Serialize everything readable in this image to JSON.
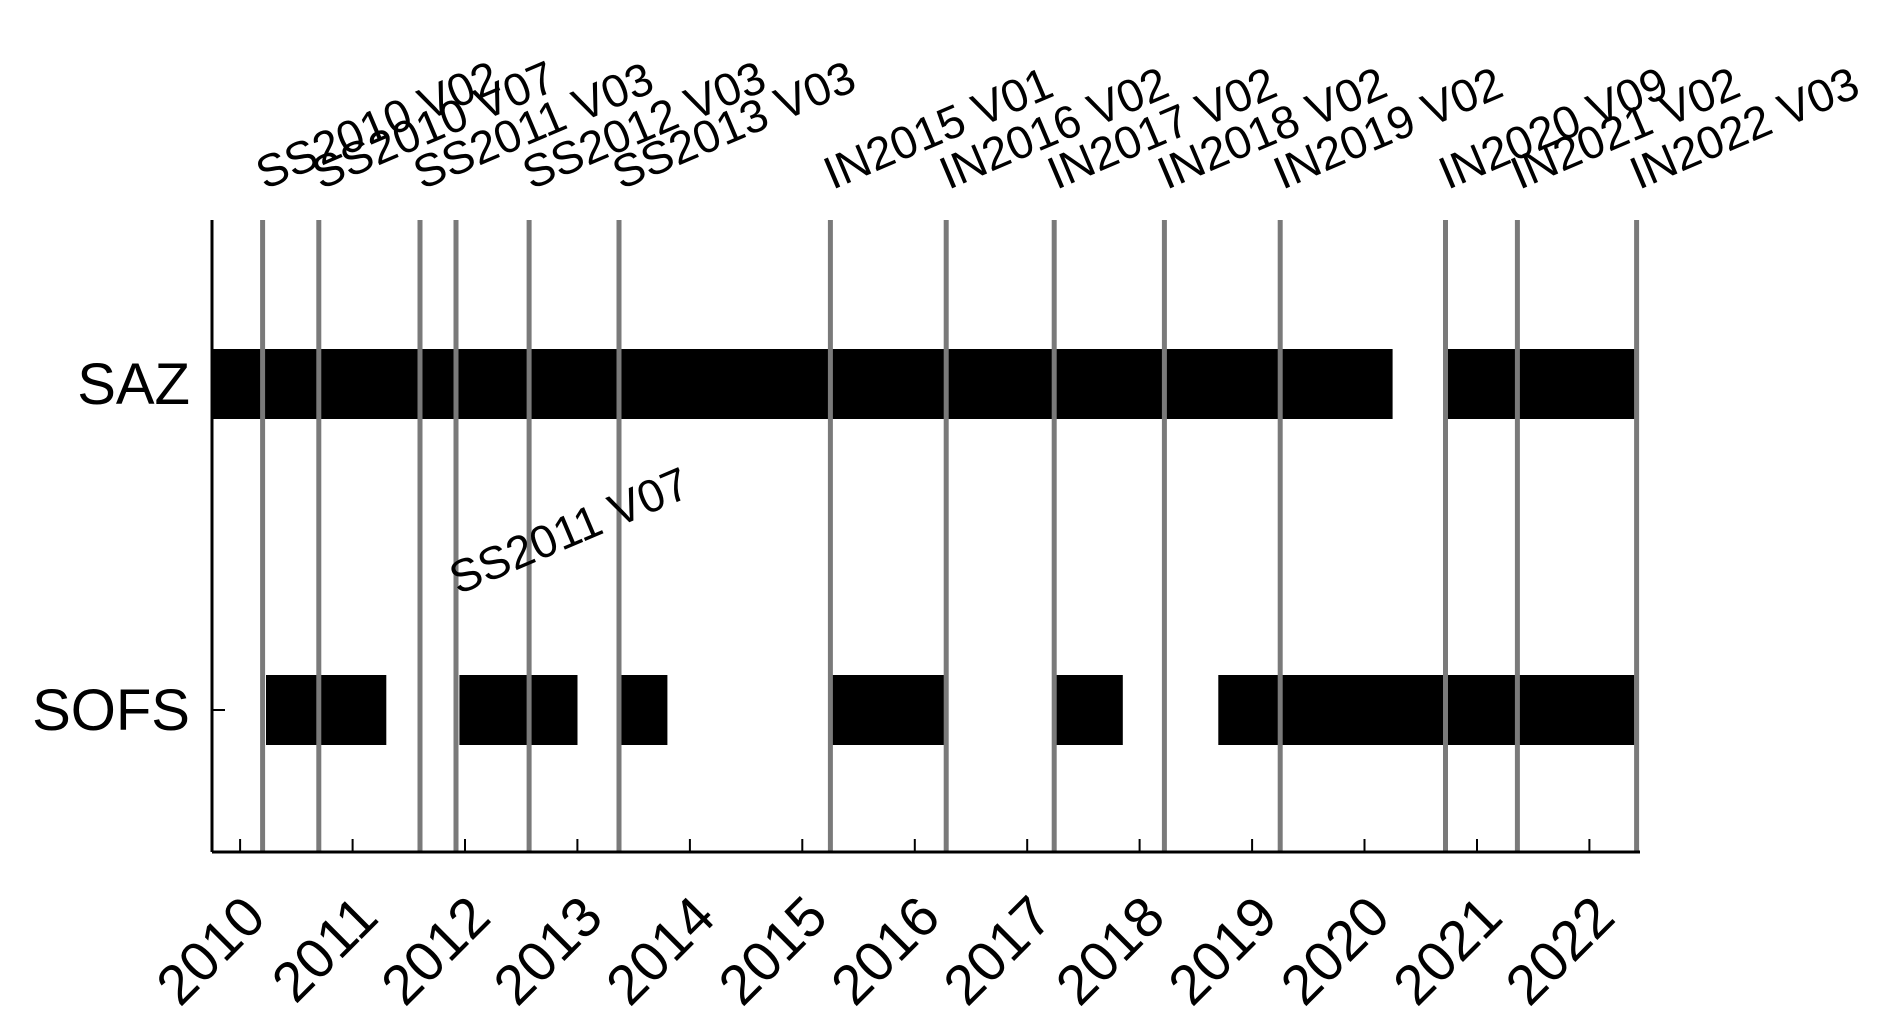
{
  "chart_data": {
    "type": "timeline",
    "title": "",
    "xlabel": "",
    "ylabel": "",
    "xlim": [
      2009.75,
      2022.45
    ],
    "x_ticks": [
      "2010",
      "2011",
      "2012",
      "2013",
      "2014",
      "2015",
      "2016",
      "2017",
      "2018",
      "2019",
      "2020",
      "2021",
      "2022"
    ],
    "categories": [
      "SAZ",
      "SOFS"
    ],
    "grid": false,
    "legend": "none",
    "colors": {
      "bar": "#000000",
      "voyage_line": "#7a7a7a",
      "axis": "#000000"
    },
    "series": [
      {
        "name": "SAZ",
        "intervals": [
          [
            2009.75,
            2020.25
          ],
          [
            2020.73,
            2022.4
          ]
        ]
      },
      {
        "name": "SOFS",
        "intervals": [
          [
            2010.23,
            2011.3
          ],
          [
            2011.95,
            2013.0
          ],
          [
            2013.35,
            2013.8
          ],
          [
            2015.25,
            2016.3
          ],
          [
            2017.25,
            2017.85
          ],
          [
            2018.7,
            2022.4
          ]
        ]
      }
    ],
    "voyages": [
      {
        "label": "SS2010 V02",
        "x": 2010.2,
        "row": "top"
      },
      {
        "label": "SS2010 V07",
        "x": 2010.7,
        "row": "top"
      },
      {
        "label": "SS2011 V03",
        "x": 2011.6,
        "row": "top"
      },
      {
        "label": "SS2011 V07",
        "x": 2011.92,
        "row": "mid"
      },
      {
        "label": "SS2012 V03",
        "x": 2012.57,
        "row": "top"
      },
      {
        "label": "SS2013 V03",
        "x": 2013.37,
        "row": "top"
      },
      {
        "label": "IN2015 V01",
        "x": 2015.25,
        "row": "top"
      },
      {
        "label": "IN2016 V02",
        "x": 2016.28,
        "row": "top"
      },
      {
        "label": "IN2017 V02",
        "x": 2017.24,
        "row": "top"
      },
      {
        "label": "IN2018 V02",
        "x": 2018.22,
        "row": "top"
      },
      {
        "label": "IN2019 V02",
        "x": 2019.25,
        "row": "top"
      },
      {
        "label": "IN2020 V09",
        "x": 2020.72,
        "row": "top"
      },
      {
        "label": "IN2021 V02",
        "x": 2021.36,
        "row": "top"
      },
      {
        "label": "IN2022 V03",
        "x": 2022.42,
        "row": "top"
      }
    ]
  }
}
